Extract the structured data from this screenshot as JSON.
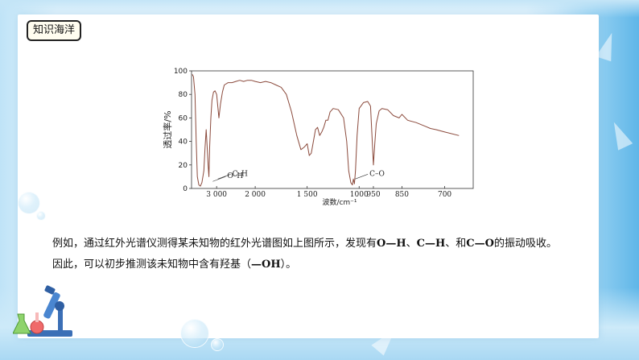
{
  "slide_title": "知识海洋",
  "chart_data": {
    "type": "line",
    "title": "",
    "xlabel": "波数/cm⁻¹",
    "ylabel": "透过率/%",
    "x_reversed": true,
    "x_ticks": [
      {
        "value": 3000,
        "label": "3 000"
      },
      {
        "value": 2000,
        "label": "2 000"
      },
      {
        "value": 1500,
        "label": "1 500"
      },
      {
        "value": 1000,
        "label": "1000"
      },
      {
        "value": 950,
        "label": "950"
      },
      {
        "value": 850,
        "label": "850"
      },
      {
        "value": 700,
        "label": "700"
      }
    ],
    "y_ticks": [
      0,
      20,
      40,
      60,
      80,
      100
    ],
    "ylim": [
      0,
      100
    ],
    "grid": false,
    "annotations": [
      {
        "label": "C–H",
        "x": 2970,
        "y": 8
      },
      {
        "label": "O–H",
        "x": 3100,
        "y": 6
      },
      {
        "label": "C–O",
        "x": 1040,
        "y": 8
      }
    ],
    "series": [
      {
        "points": [
          [
            3630,
            97
          ],
          [
            3600,
            95
          ],
          [
            3560,
            80
          ],
          [
            3530,
            40
          ],
          [
            3500,
            10
          ],
          [
            3460,
            3
          ],
          [
            3420,
            2
          ],
          [
            3380,
            5
          ],
          [
            3330,
            15
          ],
          [
            3300,
            35
          ],
          [
            3270,
            50
          ],
          [
            3250,
            38
          ],
          [
            3220,
            20
          ],
          [
            3200,
            10
          ],
          [
            3180,
            35
          ],
          [
            3150,
            60
          ],
          [
            3120,
            75
          ],
          [
            3080,
            82
          ],
          [
            3040,
            83
          ],
          [
            3000,
            80
          ],
          [
            2970,
            70
          ],
          [
            2940,
            60
          ],
          [
            2900,
            72
          ],
          [
            2850,
            82
          ],
          [
            2800,
            88
          ],
          [
            2700,
            90
          ],
          [
            2600,
            90
          ],
          [
            2500,
            91
          ],
          [
            2400,
            92
          ],
          [
            2300,
            91
          ],
          [
            2200,
            92
          ],
          [
            2100,
            92
          ],
          [
            2000,
            91
          ],
          [
            1950,
            90
          ],
          [
            1900,
            91
          ],
          [
            1850,
            90
          ],
          [
            1800,
            88
          ],
          [
            1750,
            86
          ],
          [
            1700,
            80
          ],
          [
            1650,
            65
          ],
          [
            1600,
            45
          ],
          [
            1560,
            33
          ],
          [
            1530,
            35
          ],
          [
            1500,
            38
          ],
          [
            1480,
            28
          ],
          [
            1460,
            30
          ],
          [
            1440,
            40
          ],
          [
            1420,
            50
          ],
          [
            1400,
            52
          ],
          [
            1380,
            45
          ],
          [
            1360,
            48
          ],
          [
            1340,
            52
          ],
          [
            1320,
            58
          ],
          [
            1300,
            58
          ],
          [
            1280,
            65
          ],
          [
            1250,
            68
          ],
          [
            1200,
            67
          ],
          [
            1150,
            60
          ],
          [
            1120,
            40
          ],
          [
            1100,
            15
          ],
          [
            1080,
            5
          ],
          [
            1065,
            3
          ],
          [
            1055,
            8
          ],
          [
            1045,
            4
          ],
          [
            1035,
            15
          ],
          [
            1020,
            45
          ],
          [
            1000,
            68
          ],
          [
            985,
            73
          ],
          [
            970,
            74
          ],
          [
            960,
            70
          ],
          [
            955,
            45
          ],
          [
            950,
            20
          ],
          [
            945,
            38
          ],
          [
            940,
            55
          ],
          [
            930,
            66
          ],
          [
            920,
            68
          ],
          [
            900,
            67
          ],
          [
            880,
            62
          ],
          [
            860,
            60
          ],
          [
            850,
            63
          ],
          [
            830,
            58
          ],
          [
            800,
            56
          ],
          [
            770,
            53
          ],
          [
            750,
            51
          ],
          [
            730,
            50
          ],
          [
            700,
            48
          ],
          [
            650,
            45
          ]
        ]
      }
    ]
  },
  "paragraph": {
    "line1": {
      "prefix": "例如，通过红外光谱仪测得某未知物的红外光谱图如上图所示，发现有",
      "oh": "O—H",
      "sep1": "、",
      "ch": "C—H",
      "sep2": "、和",
      "co": "C—O",
      "suffix": "的振动吸收。"
    },
    "line2": {
      "prefix": "因此，可以初步推测该未知物中含有羟基（",
      "group": "—OH",
      "suffix": "）。"
    }
  }
}
